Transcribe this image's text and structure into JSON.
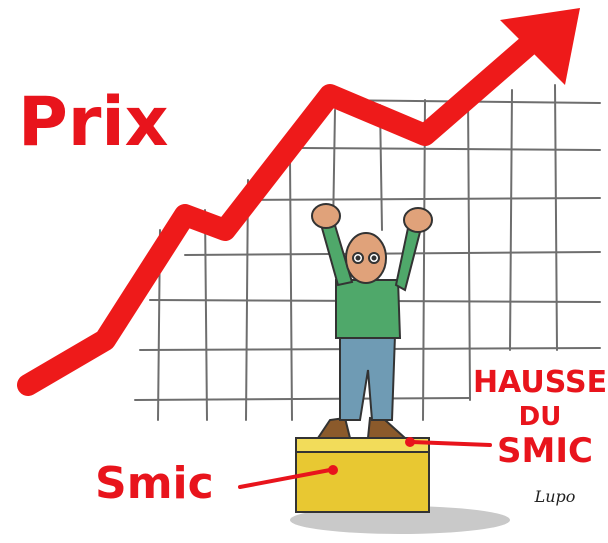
{
  "title": "Prix",
  "raise_label": [
    "HAUSSE",
    "DU",
    "SMIC"
  ],
  "box_label": "Smic",
  "signature": "Lupo"
}
